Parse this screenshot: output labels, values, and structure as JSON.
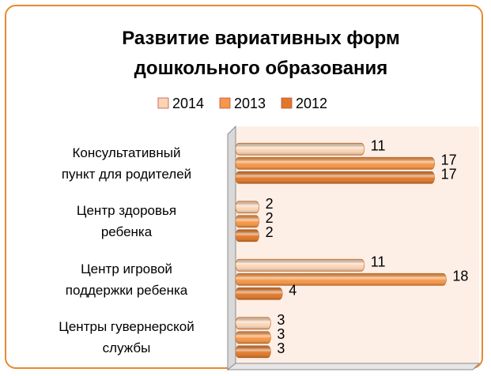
{
  "chart_data": {
    "type": "bar",
    "orientation": "horizontal",
    "title": "Развитие вариативных форм\nдошкольного образования",
    "categories": [
      "Консультативный\nпункт для родителей",
      "Центр здоровья\nребенка",
      "Центр игровой\nподдержки ребенка",
      "Центры гувернерской\nслужбы"
    ],
    "series": [
      {
        "name": "2014",
        "color": "#fbd4b4",
        "values": [
          11,
          2,
          11,
          3
        ]
      },
      {
        "name": "2013",
        "color": "#f79646",
        "values": [
          17,
          2,
          18,
          3
        ]
      },
      {
        "name": "2012",
        "color": "#e0782a",
        "values": [
          17,
          2,
          4,
          3
        ]
      }
    ],
    "xlim": [
      0,
      20
    ],
    "legend": "top"
  }
}
